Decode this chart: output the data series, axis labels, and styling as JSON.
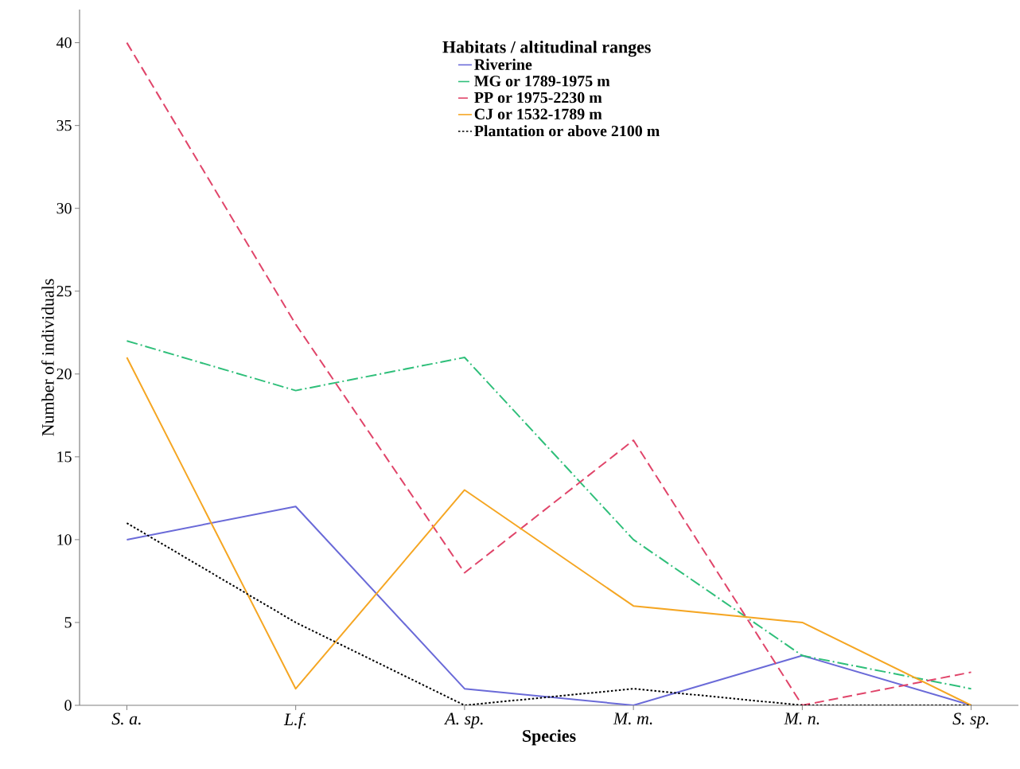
{
  "chart_data": {
    "type": "line",
    "xlabel": "Species",
    "ylabel": "Number of individuals",
    "legend_title": "Habitats / altitudinal ranges",
    "categories": [
      "S. a.",
      "L.f.",
      "A. sp.",
      "M. m.",
      "M. n.",
      "S. sp."
    ],
    "series": [
      {
        "name": "Riverine",
        "color": "#6a6ad8",
        "line_style": "solid",
        "values": [
          10,
          12,
          1,
          0,
          3,
          0
        ]
      },
      {
        "name": "MG or 1789-1975 m",
        "color": "#2fbf7a",
        "line_style": "dashdot",
        "values": [
          22,
          19,
          21,
          10,
          3,
          1
        ]
      },
      {
        "name": "PP or 1975-2230 m",
        "color": "#e0456a",
        "line_style": "dashed",
        "values": [
          40,
          23,
          8,
          16,
          0,
          2
        ]
      },
      {
        "name": "CJ or 1532-1789 m",
        "color": "#f5a623",
        "line_style": "solid",
        "values": [
          21,
          1,
          13,
          6,
          5,
          0
        ]
      },
      {
        "name": "Plantation or above 2100 m",
        "color": "#000000",
        "line_style": "dotted",
        "values": [
          11,
          5,
          0,
          1,
          0,
          0
        ]
      }
    ],
    "ylim": [
      0,
      42
    ],
    "yticks": [
      0,
      5,
      10,
      15,
      20,
      25,
      30,
      35,
      40
    ],
    "legend": "top right",
    "grid": false
  }
}
